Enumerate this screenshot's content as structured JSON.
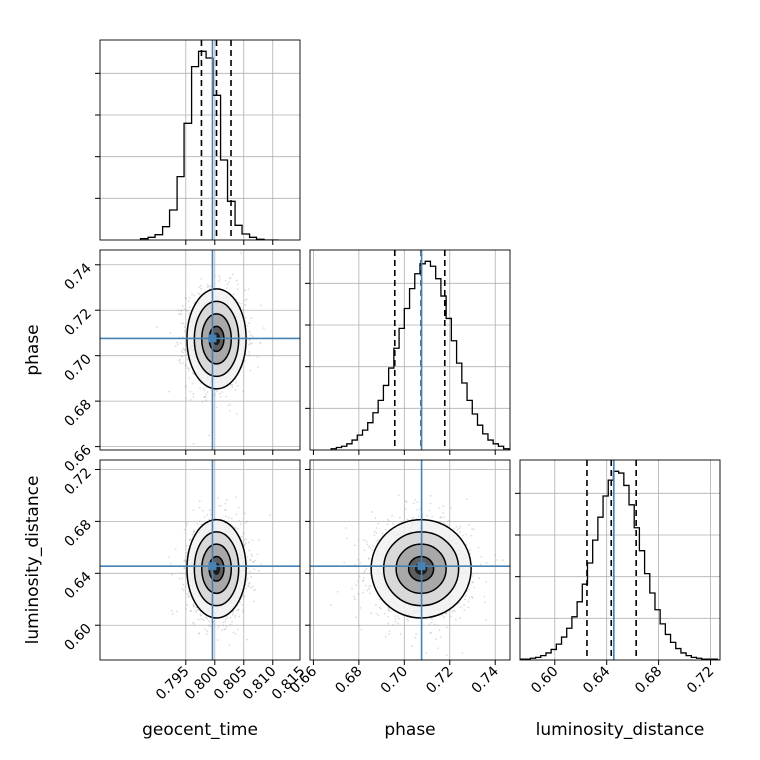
{
  "chart_data": {
    "type": "corner",
    "params": [
      "geocent_time",
      "phase",
      "luminosity_distance"
    ],
    "axis_labels": {
      "x": [
        "geocent_time",
        "phase",
        "luminosity_distance"
      ],
      "y": [
        "phase",
        "luminosity_distance"
      ]
    },
    "grid": true,
    "ranges": [
      [
        0.7802,
        0.8147
      ],
      [
        0.6585,
        0.7465
      ],
      [
        0.5732,
        0.7273
      ]
    ],
    "ticks": [
      [
        0.795,
        0.8,
        0.805,
        0.81,
        0.815
      ],
      [
        0.66,
        0.68,
        0.7,
        0.72,
        0.74
      ],
      [
        0.6,
        0.64,
        0.68,
        0.72
      ]
    ],
    "tick_labels": [
      [
        "0.795",
        "0.800",
        "0.805",
        "0.810",
        "0.815"
      ],
      [
        "0.66",
        "0.68",
        "0.70",
        "0.72",
        "0.74"
      ],
      [
        "0.60",
        "0.64",
        "0.68",
        "0.72"
      ]
    ],
    "injection": [
      0.7996,
      0.7076,
      0.6455
    ],
    "quantiles": [
      [
        0.7977,
        0.8003,
        0.8028
      ],
      [
        0.6958,
        0.7074,
        0.7178
      ],
      [
        0.6248,
        0.6435,
        0.6627
      ]
    ],
    "histograms": [
      {
        "param": "geocent_time",
        "bin_edges": [
          0.7872,
          0.7885,
          0.7897,
          0.791,
          0.7922,
          0.7935,
          0.7947,
          0.796,
          0.7972,
          0.7985,
          0.7997,
          0.801,
          0.8022,
          0.8035,
          0.8047,
          0.806,
          0.8072,
          0.8085,
          0.8097,
          0.811
        ],
        "counts": [
          2,
          4,
          8,
          20,
          45,
          95,
          175,
          260,
          283,
          273,
          217,
          120,
          58,
          22,
          9,
          4,
          1,
          0,
          0
        ]
      },
      {
        "param": "phase",
        "bin_edges": [
          0.6678,
          0.6701,
          0.6724,
          0.6747,
          0.677,
          0.6793,
          0.6816,
          0.6839,
          0.6862,
          0.6885,
          0.6908,
          0.6931,
          0.6954,
          0.6977,
          0.7,
          0.7023,
          0.7046,
          0.7069,
          0.7092,
          0.7115,
          0.7138,
          0.7161,
          0.7184,
          0.7207,
          0.723,
          0.7253,
          0.7276,
          0.7299,
          0.7322,
          0.7345,
          0.7368,
          0.7391,
          0.7414,
          0.7437,
          0.746
        ],
        "counts": [
          1,
          2,
          3,
          5,
          8,
          12,
          16,
          22,
          30,
          40,
          52,
          66,
          82,
          98,
          114,
          130,
          142,
          150,
          152,
          148,
          138,
          124,
          106,
          88,
          70,
          54,
          40,
          29,
          20,
          13,
          8,
          5,
          3,
          1
        ]
      },
      {
        "param": "luminosity_distance",
        "bin_edges": [
          0.5732,
          0.5772,
          0.5812,
          0.5852,
          0.5892,
          0.5932,
          0.5972,
          0.6012,
          0.6052,
          0.6092,
          0.6132,
          0.6172,
          0.6212,
          0.6252,
          0.6292,
          0.6332,
          0.6372,
          0.6412,
          0.6452,
          0.6492,
          0.6532,
          0.6572,
          0.6612,
          0.6652,
          0.6692,
          0.6732,
          0.6772,
          0.6812,
          0.6852,
          0.6892,
          0.6932,
          0.6972,
          0.7012,
          0.7052,
          0.7092,
          0.7132,
          0.7172,
          0.7212,
          0.7252,
          0.7273
        ],
        "counts": [
          1,
          1,
          2,
          3,
          5,
          8,
          12,
          18,
          26,
          36,
          49,
          66,
          86,
          110,
          136,
          162,
          186,
          204,
          214,
          212,
          198,
          176,
          150,
          124,
          98,
          76,
          57,
          41,
          29,
          20,
          13,
          8,
          5,
          3,
          2,
          1,
          1,
          1,
          0
        ]
      }
    ],
    "contour_levels_sigma": [
      0.5,
      1.0,
      1.5,
      2.0
    ]
  }
}
